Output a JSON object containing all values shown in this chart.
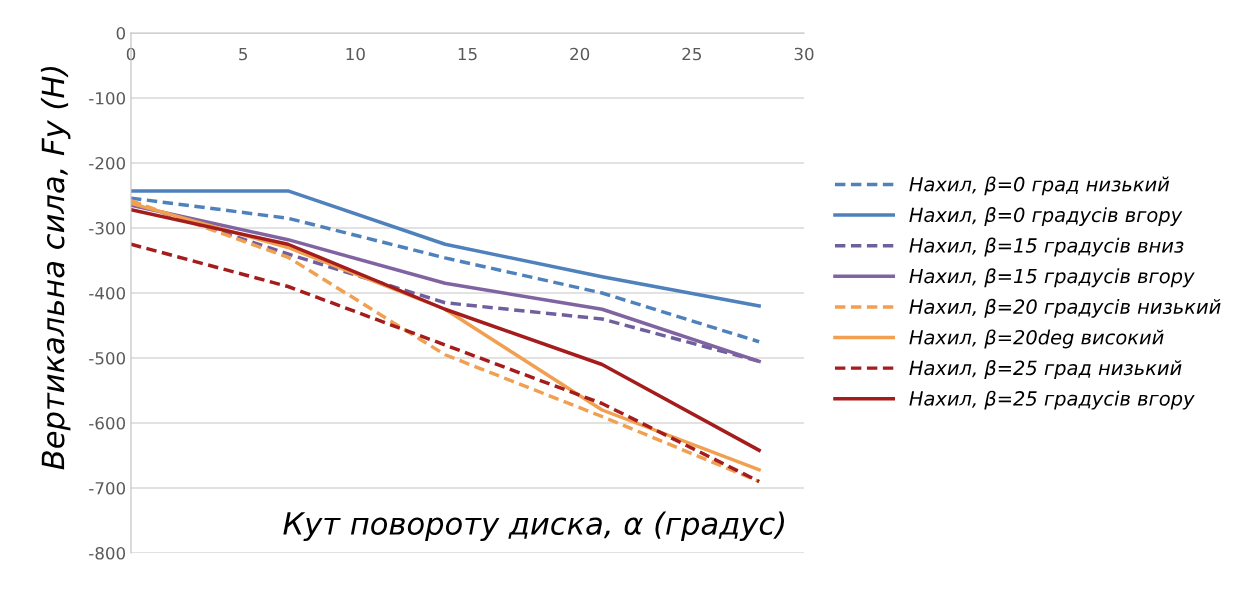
{
  "chart_data": {
    "type": "line",
    "xlabel": "Кут повороту диска, α (градус)",
    "ylabel": "Вертикальна сила, Fy (Н)",
    "x": [
      0,
      7,
      14,
      21,
      28
    ],
    "xlim": [
      0,
      30
    ],
    "xticks": [
      0,
      5,
      10,
      15,
      20,
      25,
      30
    ],
    "ylim": [
      -800,
      0
    ],
    "yticks": [
      -800,
      -700,
      -600,
      -500,
      -400,
      -300,
      -200,
      -100,
      0
    ],
    "grid": "y",
    "legend": "right",
    "marker": "none",
    "series": [
      {
        "name": "Нахил, β=0 град низький",
        "color": "#4f81bd",
        "line_style": "dashed",
        "values": [
          -254,
          -285,
          -346,
          -400,
          -475
        ]
      },
      {
        "name": "Нахил, β=0 градусів вгору",
        "color": "#4f81bd",
        "line_style": "solid",
        "values": [
          -243,
          -243,
          -325,
          -375,
          -420
        ]
      },
      {
        "name": "Нахил, β=15 градусів вниз",
        "color": "#6f5f9e",
        "line_style": "dashed",
        "values": [
          -260,
          -340,
          -415,
          -440,
          -505
        ]
      },
      {
        "name": "Нахил, β=15 градусів вгору",
        "color": "#8064a2",
        "line_style": "solid",
        "values": [
          -265,
          -318,
          -385,
          -425,
          -505
        ]
      },
      {
        "name": "Нахил, β=20 градусів низький",
        "color": "#f0a050",
        "line_style": "dashed",
        "values": [
          -258,
          -345,
          -495,
          -590,
          -690
        ]
      },
      {
        "name": "Нахил, β=20deg високий",
        "color": "#f0a050",
        "line_style": "solid",
        "values": [
          -262,
          -330,
          -425,
          -580,
          -672
        ]
      },
      {
        "name": "Нахил, β=25 град низький",
        "color": "#a51c1c",
        "line_style": "dashed",
        "values": [
          -325,
          -390,
          -480,
          -570,
          -690
        ]
      },
      {
        "name": "Нахил, β=25 градусів вгору",
        "color": "#a51c1c",
        "line_style": "solid",
        "values": [
          -272,
          -325,
          -425,
          -510,
          -642
        ]
      }
    ]
  }
}
